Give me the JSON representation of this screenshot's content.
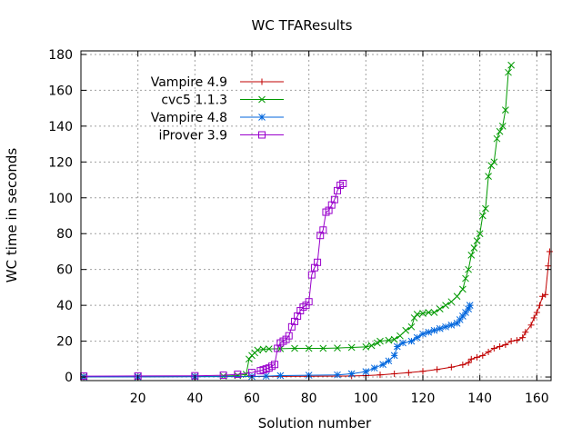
{
  "chart_data": {
    "type": "line",
    "title": "WC TFAResults",
    "xlabel": "Solution number",
    "ylabel": "WC time in seconds",
    "xlim": [
      0,
      165
    ],
    "ylim": [
      -2,
      182
    ],
    "xticks": [
      20,
      40,
      60,
      80,
      100,
      120,
      140,
      160
    ],
    "yticks": [
      0,
      20,
      40,
      60,
      80,
      100,
      120,
      140,
      160,
      180
    ],
    "grid": true,
    "legend_position": "top-left",
    "series": [
      {
        "name": "Vampire 4.9",
        "color": "#c00000",
        "marker": "plus",
        "points": [
          [
            1,
            0.2
          ],
          [
            20,
            0.2
          ],
          [
            40,
            0.3
          ],
          [
            60,
            0.3
          ],
          [
            80,
            0.4
          ],
          [
            95,
            0.6
          ],
          [
            100,
            0.8
          ],
          [
            105,
            1.2
          ],
          [
            110,
            1.8
          ],
          [
            115,
            2.4
          ],
          [
            120,
            3.2
          ],
          [
            125,
            4.2
          ],
          [
            130,
            5.5
          ],
          [
            134,
            6.8
          ],
          [
            136,
            8
          ],
          [
            137,
            10
          ],
          [
            139,
            11
          ],
          [
            141,
            12
          ],
          [
            143,
            14
          ],
          [
            145,
            16
          ],
          [
            147,
            17
          ],
          [
            149,
            18
          ],
          [
            151,
            20
          ],
          [
            153,
            20.5
          ],
          [
            155,
            22
          ],
          [
            156,
            25
          ],
          [
            158,
            29
          ],
          [
            159,
            33
          ],
          [
            160,
            36
          ],
          [
            161,
            40
          ],
          [
            162,
            45
          ],
          [
            163,
            46
          ],
          [
            164,
            62
          ],
          [
            164.5,
            70
          ]
        ]
      },
      {
        "name": "cvc5 1.1.3",
        "color": "#009900",
        "marker": "cross",
        "points": [
          [
            1,
            0.2
          ],
          [
            20,
            0.2
          ],
          [
            40,
            0.3
          ],
          [
            50,
            0.5
          ],
          [
            55,
            0.8
          ],
          [
            58,
            1.5
          ],
          [
            59,
            10
          ],
          [
            60,
            12
          ],
          [
            61,
            13.5
          ],
          [
            62,
            15
          ],
          [
            64,
            15.5
          ],
          [
            66,
            15.7
          ],
          [
            70,
            15.8
          ],
          [
            75,
            16
          ],
          [
            80,
            16
          ],
          [
            85,
            16
          ],
          [
            90,
            16.2
          ],
          [
            95,
            16.5
          ],
          [
            100,
            16.8
          ],
          [
            102,
            17.5
          ],
          [
            104,
            19
          ],
          [
            105,
            20
          ],
          [
            108,
            20.5
          ],
          [
            110,
            21
          ],
          [
            112,
            23
          ],
          [
            114,
            26
          ],
          [
            116,
            28
          ],
          [
            117,
            33
          ],
          [
            118,
            35
          ],
          [
            120,
            35.5
          ],
          [
            122,
            36
          ],
          [
            124,
            36
          ],
          [
            126,
            38
          ],
          [
            128,
            40
          ],
          [
            130,
            42
          ],
          [
            132,
            45
          ],
          [
            134,
            49
          ],
          [
            135,
            55
          ],
          [
            136,
            60
          ],
          [
            137,
            68
          ],
          [
            138,
            72
          ],
          [
            139,
            76
          ],
          [
            140,
            80
          ],
          [
            141,
            90
          ],
          [
            142,
            94
          ],
          [
            143,
            112
          ],
          [
            144,
            118
          ],
          [
            145,
            120
          ],
          [
            146,
            133
          ],
          [
            147,
            137
          ],
          [
            148,
            140
          ],
          [
            149,
            149
          ],
          [
            150,
            170
          ],
          [
            151,
            174
          ]
        ]
      },
      {
        "name": "Vampire 4.8",
        "color": "#0066dd",
        "marker": "star",
        "points": [
          [
            1,
            0.1
          ],
          [
            20,
            0.1
          ],
          [
            40,
            0.2
          ],
          [
            60,
            0.3
          ],
          [
            65,
            0.5
          ],
          [
            70,
            0.8
          ],
          [
            80,
            1
          ],
          [
            90,
            1.2
          ],
          [
            95,
            1.8
          ],
          [
            100,
            3
          ],
          [
            103,
            5
          ],
          [
            106,
            7
          ],
          [
            108,
            9
          ],
          [
            110,
            12
          ],
          [
            111,
            17
          ],
          [
            113,
            19
          ],
          [
            116,
            20
          ],
          [
            118,
            22
          ],
          [
            120,
            24
          ],
          [
            122,
            25
          ],
          [
            124,
            26
          ],
          [
            126,
            27
          ],
          [
            128,
            28
          ],
          [
            130,
            29
          ],
          [
            132,
            30
          ],
          [
            133,
            32
          ],
          [
            134,
            34
          ],
          [
            135,
            36
          ],
          [
            136,
            38
          ],
          [
            136.5,
            40
          ]
        ]
      },
      {
        "name": "iProver 3.9",
        "color": "#9900cc",
        "marker": "square",
        "points": [
          [
            1,
            0.5
          ],
          [
            20,
            0.6
          ],
          [
            40,
            0.7
          ],
          [
            50,
            1
          ],
          [
            55,
            1.5
          ],
          [
            60,
            2.5
          ],
          [
            63,
            3.5
          ],
          [
            64,
            4
          ],
          [
            65,
            4.5
          ],
          [
            66,
            5
          ],
          [
            67,
            6
          ],
          [
            68,
            7
          ],
          [
            69,
            16
          ],
          [
            70,
            19
          ],
          [
            71,
            20
          ],
          [
            72,
            21
          ],
          [
            73,
            23
          ],
          [
            74,
            28
          ],
          [
            75,
            31
          ],
          [
            76,
            34
          ],
          [
            77,
            37
          ],
          [
            78,
            39
          ],
          [
            79,
            40
          ],
          [
            80,
            42
          ],
          [
            81,
            57
          ],
          [
            82,
            61
          ],
          [
            83,
            64
          ],
          [
            84,
            79
          ],
          [
            85,
            82
          ],
          [
            86,
            92
          ],
          [
            87,
            93
          ],
          [
            88,
            96
          ],
          [
            89,
            99
          ],
          [
            90,
            104
          ],
          [
            91,
            107
          ],
          [
            92,
            108
          ]
        ]
      }
    ]
  }
}
